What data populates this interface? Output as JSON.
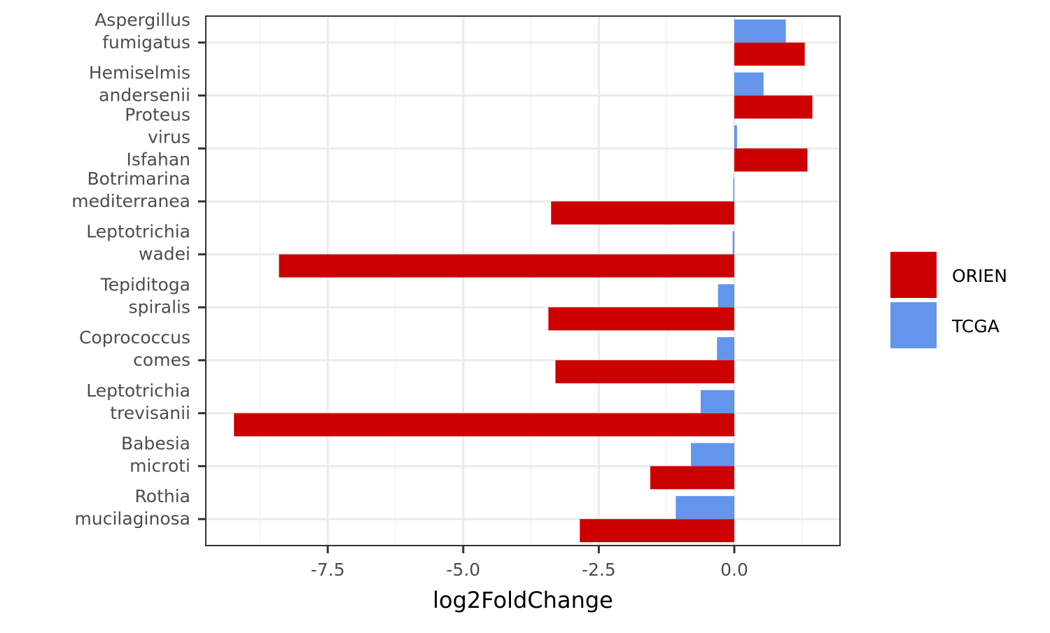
{
  "chart_data": {
    "type": "bar",
    "orientation": "horizontal",
    "grouped": true,
    "xlabel": "log2FoldChange",
    "ylabel": "",
    "xlim": [
      -9.75,
      1.95
    ],
    "x_ticks": [
      -7.5,
      -5.0,
      -2.5,
      0.0
    ],
    "x_tick_labels": [
      "-7.5",
      "-5.0",
      "-2.5",
      "0.0"
    ],
    "grid": true,
    "legend_position": "right",
    "categories": [
      "Rothia mucilaginosa",
      "Babesia microti",
      "Leptotrichia trevisanii",
      "Coprococcus comes",
      "Tepiditoga spiralis",
      "Leptotrichia wadei",
      "Botrimarina mediterranea",
      "Proteus virus Isfahan",
      "Hemiselmis andersenii",
      "Aspergillus fumigatus"
    ],
    "category_labels": [
      [
        "Rothia",
        "mucilaginosa"
      ],
      [
        "Babesia",
        "microti"
      ],
      [
        "Leptotrichia",
        "trevisanii"
      ],
      [
        "Coprococcus",
        "comes"
      ],
      [
        "Tepiditoga",
        "spiralis"
      ],
      [
        "Leptotrichia",
        "wadei"
      ],
      [
        "Botrimarina",
        "mediterranea"
      ],
      [
        "Proteus",
        "virus",
        "Isfahan"
      ],
      [
        "Hemiselmis",
        "andersenii"
      ],
      [
        "Aspergillus",
        "fumigatus"
      ]
    ],
    "series": [
      {
        "name": "ORIEN",
        "color": "#CC0000",
        "values": [
          -2.85,
          -1.55,
          -9.23,
          -3.3,
          -3.43,
          -8.4,
          -3.38,
          1.35,
          1.44,
          1.3
        ]
      },
      {
        "name": "TCGA",
        "color": "#6495ED",
        "values": [
          -1.08,
          -0.8,
          -0.62,
          -0.32,
          -0.3,
          -0.03,
          -0.02,
          0.05,
          0.54,
          0.95
        ]
      }
    ]
  }
}
